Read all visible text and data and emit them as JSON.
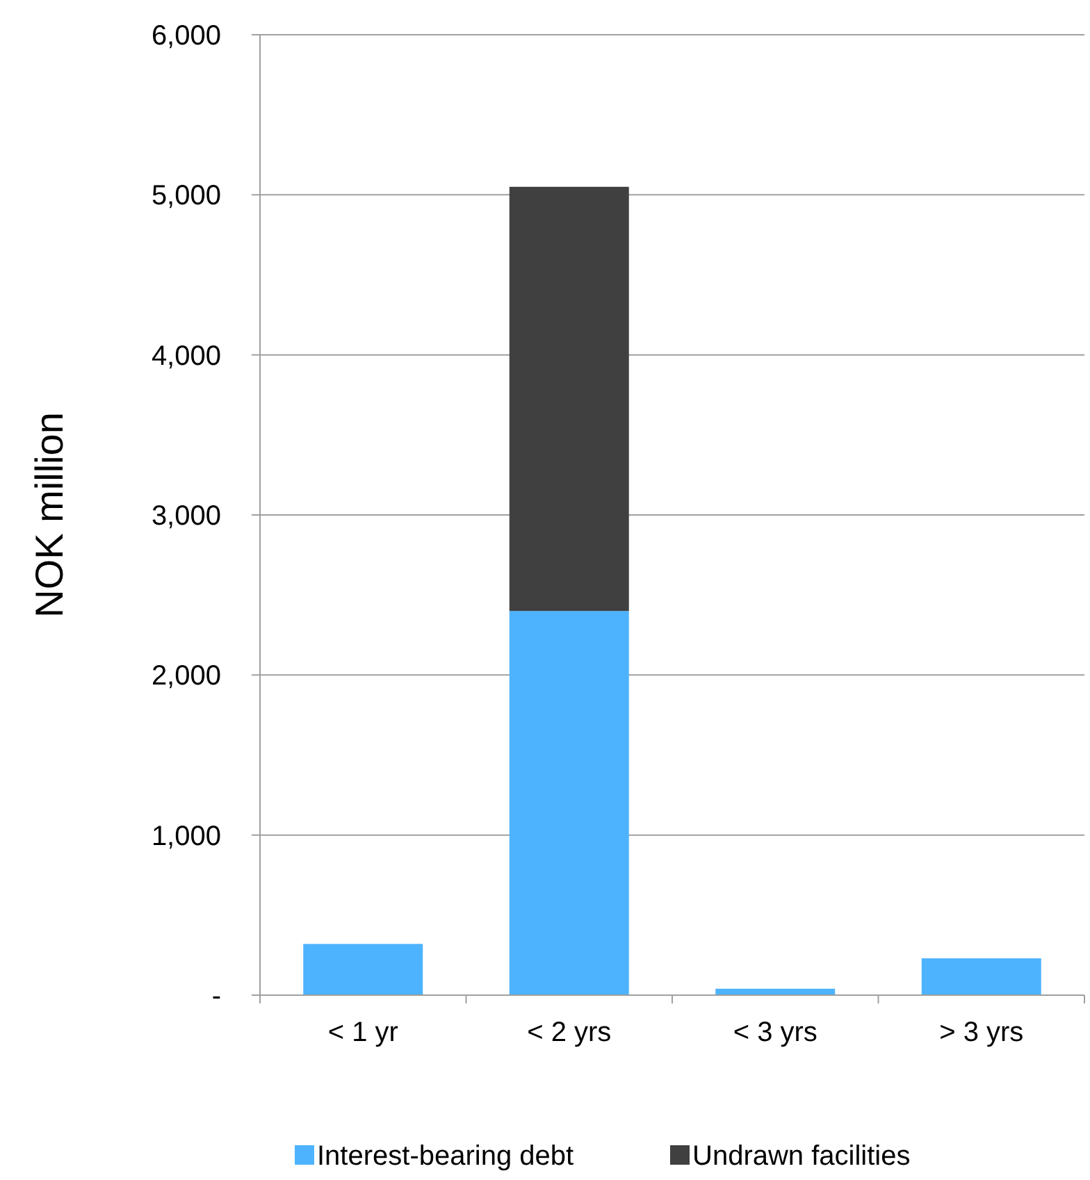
{
  "chart_data": {
    "type": "bar",
    "ylabel": "NOK million",
    "categories": [
      "< 1 yr",
      "< 2 yrs",
      "< 3 yrs",
      "> 3 yrs"
    ],
    "series": [
      {
        "name": "Interest-bearing debt",
        "color": "#4db3ff",
        "values": [
          320,
          2400,
          40,
          230
        ]
      },
      {
        "name": "Undrawn facilities",
        "color": "#404040",
        "values": [
          0,
          2650,
          0,
          0
        ]
      }
    ],
    "stacked": true,
    "ylim": [
      0,
      6000
    ],
    "yticks": [
      {
        "value": 0,
        "label": "-"
      },
      {
        "value": 1000,
        "label": "1,000"
      },
      {
        "value": 2000,
        "label": "2,000"
      },
      {
        "value": 3000,
        "label": "3,000"
      },
      {
        "value": 4000,
        "label": "4,000"
      },
      {
        "value": 5000,
        "label": "5,000"
      },
      {
        "value": 6000,
        "label": "6,000"
      }
    ],
    "grid": "y",
    "legend": "bottom"
  }
}
